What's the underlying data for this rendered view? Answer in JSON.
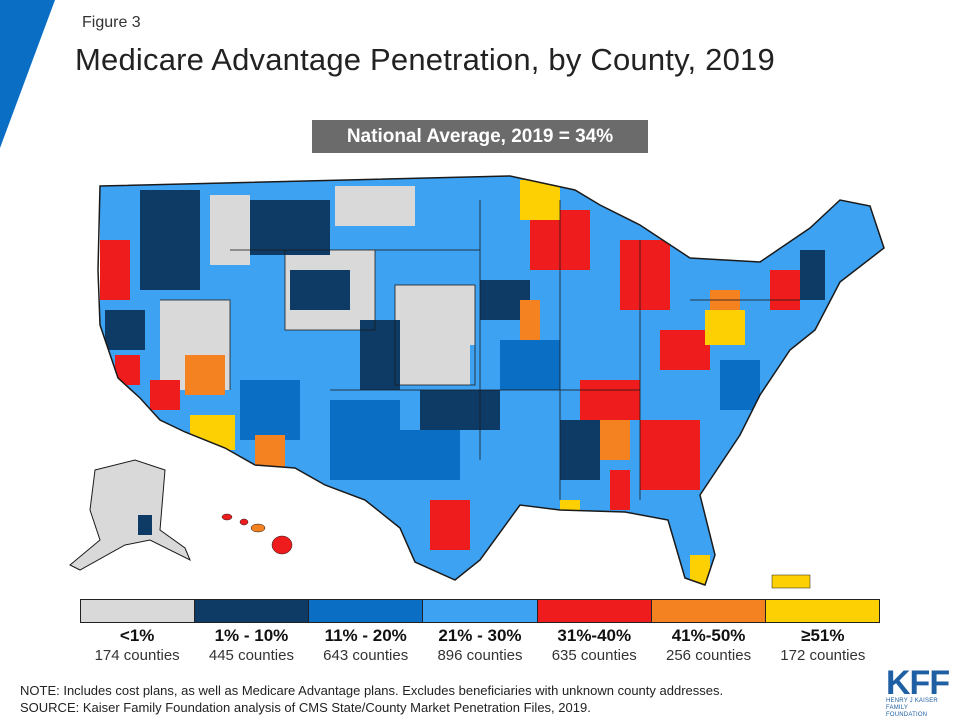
{
  "figure_label": "Figure 3",
  "title": "Medicare Advantage Penetration, by County, 2019",
  "national_average": "National Average, 2019 = 34%",
  "legend": [
    {
      "range": "<1%",
      "count": "174 counties",
      "color": "#d9d9d9"
    },
    {
      "range": "1% - 10%",
      "count": "445 counties",
      "color": "#0d3b66"
    },
    {
      "range": "11% - 20%",
      "count": "643 counties",
      "color": "#0b6ec5"
    },
    {
      "range": "21% - 30%",
      "count": "896 counties",
      "color": "#3ea2f2"
    },
    {
      "range": "31%-40%",
      "count": "635 counties",
      "color": "#ee1c1c"
    },
    {
      "range": "41%-50%",
      "count": "256 counties",
      "color": "#f48221"
    },
    {
      "range": "≥51%",
      "count": "172 counties",
      "color": "#fdd003"
    }
  ],
  "note": "NOTE: Includes cost plans, as well as Medicare Advantage plans. Excludes beneficiaries with unknown county addresses.",
  "source": "SOURCE: Kaiser Family Foundation analysis of CMS State/County Market Penetration Files, 2019.",
  "logo": {
    "text": "KFF",
    "subtitle_line1": "HENRY J KAISER",
    "subtitle_line2": "FAMILY FOUNDATION"
  },
  "colors": {
    "accent": "#0b6ec5",
    "border": "#1a1a1a"
  }
}
